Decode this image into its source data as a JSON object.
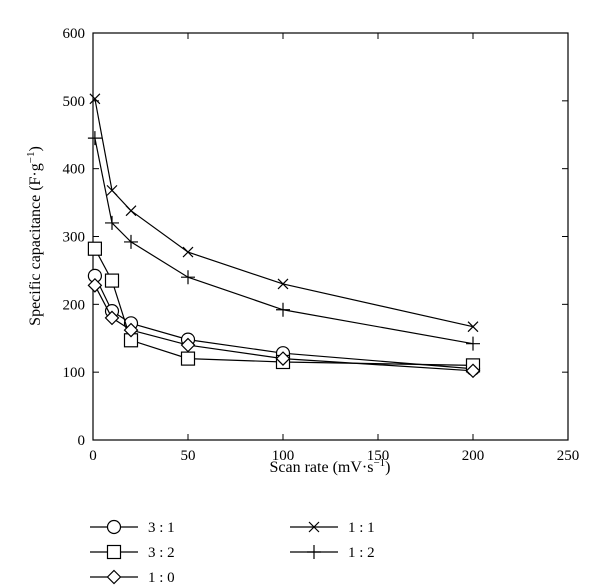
{
  "chart_data": {
    "type": "line",
    "title": "",
    "xlabel": "Scan rate (mV·s",
    "xlabel_sup": "−1",
    "xlabel_close": ")",
    "ylabel": "Specific capacitance (F·g",
    "ylabel_sup": "−1",
    "ylabel_close": ")",
    "xlim": [
      0,
      250
    ],
    "ylim": [
      0,
      600
    ],
    "xticks": [
      0,
      50,
      100,
      150,
      200,
      250
    ],
    "yticks": [
      0,
      100,
      200,
      300,
      400,
      500,
      600
    ],
    "grid": false,
    "legend_position": "bottom",
    "series": [
      {
        "name": "3 : 1",
        "marker": "circle",
        "x": [
          1,
          10,
          20,
          50,
          100,
          200
        ],
        "y": [
          242,
          190,
          172,
          148,
          128,
          105
        ]
      },
      {
        "name": "3 : 2",
        "marker": "square",
        "x": [
          1,
          10,
          20,
          50,
          100,
          200
        ],
        "y": [
          282,
          235,
          147,
          120,
          115,
          110
        ]
      },
      {
        "name": "1 : 0",
        "marker": "diamond",
        "x": [
          1,
          10,
          20,
          50,
          100,
          200
        ],
        "y": [
          228,
          180,
          162,
          140,
          120,
          102
        ]
      },
      {
        "name": "1 : 1",
        "marker": "x",
        "x": [
          1,
          10,
          20,
          50,
          100,
          200
        ],
        "y": [
          503,
          368,
          338,
          277,
          230,
          167
        ]
      },
      {
        "name": "1 : 2",
        "marker": "plus",
        "x": [
          1,
          10,
          20,
          50,
          100,
          200
        ],
        "y": [
          445,
          320,
          292,
          240,
          192,
          142
        ]
      }
    ]
  }
}
